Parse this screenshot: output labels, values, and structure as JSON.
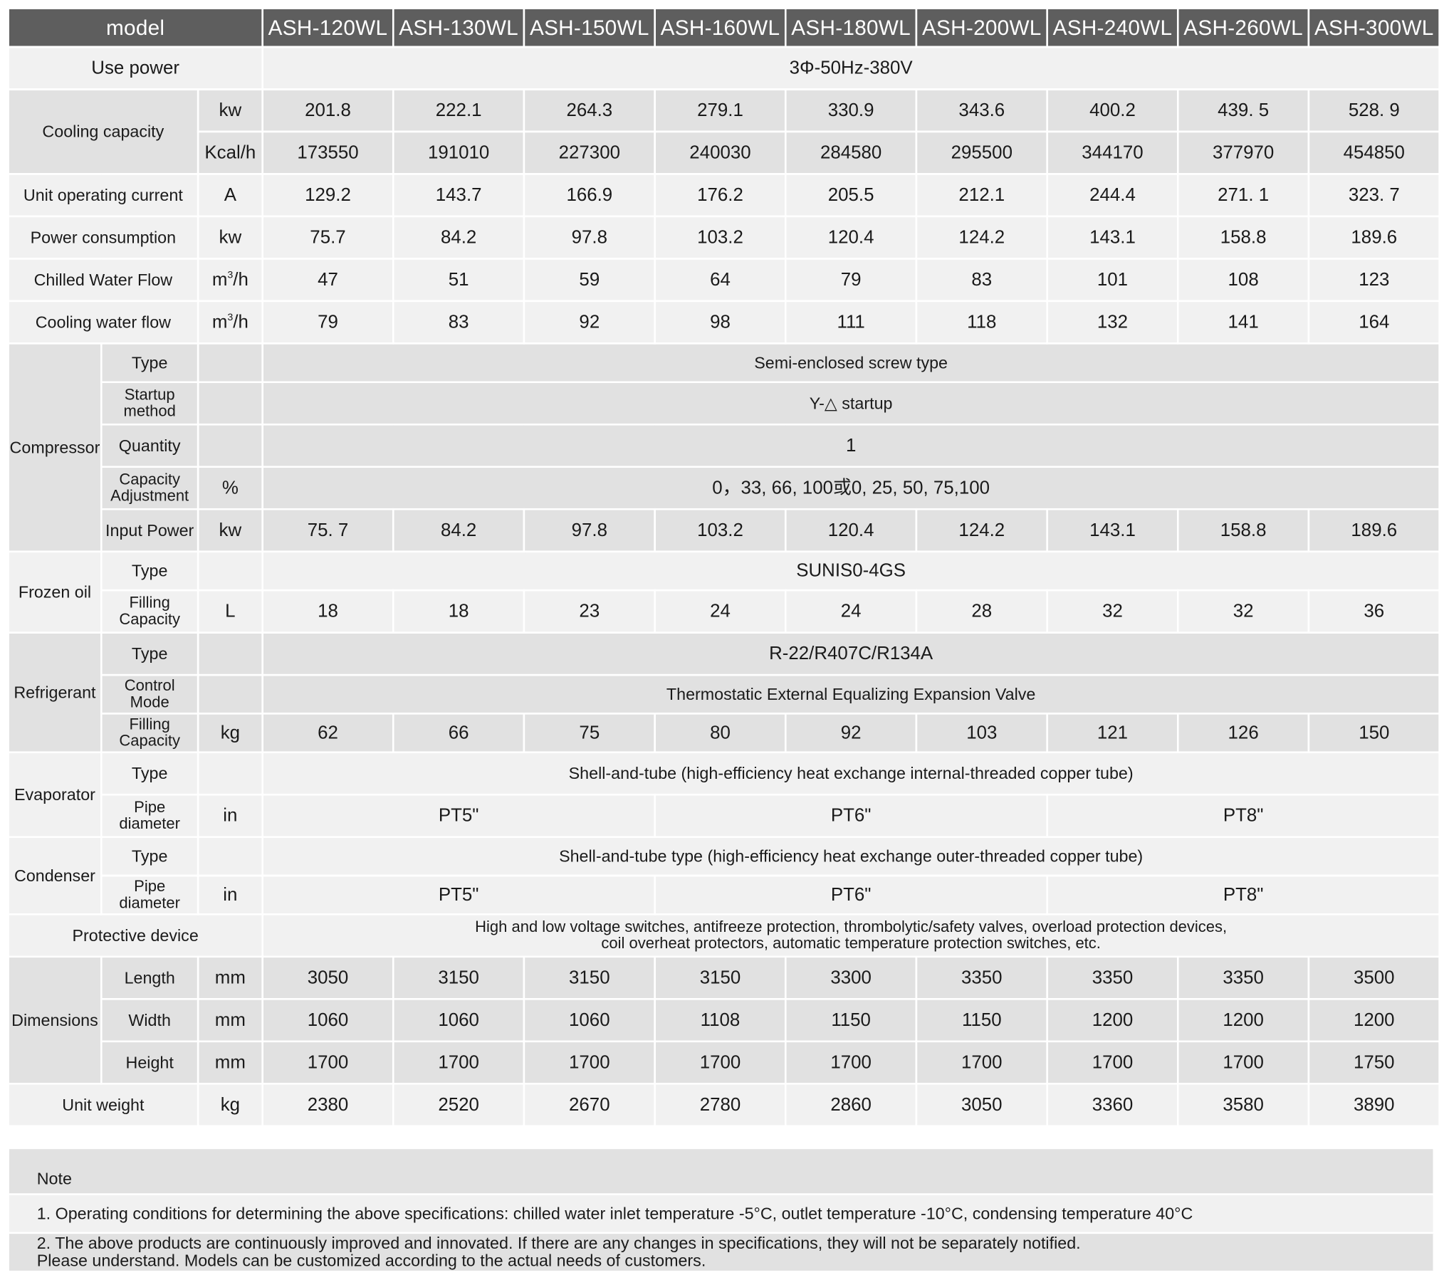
{
  "header": {
    "model_label": "model",
    "models": [
      "ASH-120WL",
      "ASH-130WL",
      "ASH-150WL",
      "ASH-160WL",
      "ASH-180WL",
      "ASH-200WL",
      "ASH-240WL",
      "ASH-260WL",
      "ASH-300WL"
    ]
  },
  "use_power": {
    "label": "Use power",
    "value": "3Φ-50Hz-380V"
  },
  "cooling_capacity": {
    "label": "Cooling capacity",
    "kw": {
      "unit": "kw",
      "values": [
        "201.8",
        "222.1",
        "264.3",
        "279.1",
        "330.9",
        "343.6",
        "400.2",
        "439. 5",
        "528. 9"
      ]
    },
    "kcal": {
      "unit": "Kcal/h",
      "values": [
        "173550",
        "191010",
        "227300",
        "240030",
        "284580",
        "295500",
        "344170",
        "377970",
        "454850"
      ]
    }
  },
  "unit_current": {
    "label": "Unit operating current",
    "unit": "A",
    "values": [
      "129.2",
      "143.7",
      "166.9",
      "176.2",
      "205.5",
      "212.1",
      "244.4",
      "271. 1",
      "323. 7"
    ]
  },
  "power_consumption": {
    "label": "Power consumption",
    "unit": "kw",
    "values": [
      "75.7",
      "84.2",
      "97.8",
      "103.2",
      "120.4",
      "124.2",
      "143.1",
      "158.8",
      "189.6"
    ]
  },
  "chilled_flow": {
    "label": "Chilled Water Flow",
    "unit_base": "m",
    "unit_sup": "3",
    "unit_tail": "/h",
    "values": [
      "47",
      "51",
      "59",
      "64",
      "79",
      "83",
      "101",
      "108",
      "123"
    ]
  },
  "cooling_flow": {
    "label": "Cooling water flow",
    "unit_base": "m",
    "unit_sup": "3",
    "unit_tail": "/h",
    "values": [
      "79",
      "83",
      "92",
      "98",
      "111",
      "118",
      "132",
      "141",
      "164"
    ]
  },
  "compressor": {
    "label": "Compressor",
    "type": {
      "label": "Type",
      "value": "Semi-enclosed screw type"
    },
    "startup": {
      "label_1": "Startup",
      "label_2": "method",
      "value": "Y-△  startup"
    },
    "quantity": {
      "label": "Quantity",
      "value": "1"
    },
    "capacity_adj": {
      "label_1": "Capacity",
      "label_2": "Adjustment",
      "unit": "%",
      "value": "0，33, 66, 100或0, 25, 50, 75,100"
    },
    "input_power": {
      "label": "Input Power",
      "unit": "kw",
      "values": [
        "75. 7",
        "84.2",
        "97.8",
        "103.2",
        "120.4",
        "124.2",
        "143.1",
        "158.8",
        "189.6"
      ]
    }
  },
  "frozen_oil": {
    "label": "Frozen oil",
    "type": {
      "label": "Type",
      "value": "SUNIS0-4GS"
    },
    "filling": {
      "label_1": "Filling",
      "label_2": "Capacity",
      "unit": "L",
      "values": [
        "18",
        "18",
        "23",
        "24",
        "24",
        "28",
        "32",
        "32",
        "36"
      ]
    }
  },
  "refrigerant": {
    "label": "Refrigerant",
    "type": {
      "label": "Type",
      "value": "R-22/R407C/R134A"
    },
    "control": {
      "label_1": "Control",
      "label_2": "Mode",
      "value": "Thermostatic External Equalizing Expansion Valve"
    },
    "filling": {
      "label_1": "Filling",
      "label_2": "Capacity",
      "unit": "kg",
      "values": [
        "62",
        "66",
        "75",
        "80",
        "92",
        "103",
        "121",
        "126",
        "150"
      ]
    }
  },
  "evaporator": {
    "label": "Evaporator",
    "type": {
      "label": "Type",
      "value": "Shell-and-tube (high-efficiency heat exchange internal-threaded copper tube)"
    },
    "pipe": {
      "label_1": "Pipe",
      "label_2": "diameter",
      "unit": "in",
      "values": [
        "PT5\"",
        "PT6\"",
        "PT8\""
      ]
    }
  },
  "condenser": {
    "label": "Condenser",
    "type": {
      "label": "Type",
      "value": "Shell-and-tube type (high-efficiency heat exchange outer-threaded copper tube)"
    },
    "pipe": {
      "label_1": "Pipe",
      "label_2": "diameter",
      "unit": "in",
      "values": [
        "PT5\"",
        "PT6\"",
        "PT8\""
      ]
    }
  },
  "protective": {
    "label": "Protective device",
    "line_1": "High and low voltage switches, antifreeze protection, thrombolytic/safety valves, overload protection devices,",
    "line_2": "coil overheat protectors, automatic temperature protection switches, etc."
  },
  "dimensions": {
    "label": "Dimensions",
    "length": {
      "label": "Length",
      "unit": "mm",
      "values": [
        "3050",
        "3150",
        "3150",
        "3150",
        "3300",
        "3350",
        "3350",
        "3350",
        "3500"
      ]
    },
    "width": {
      "label": "Width",
      "unit": "mm",
      "values": [
        "1060",
        "1060",
        "1060",
        "1108",
        "1150",
        "1150",
        "1200",
        "1200",
        "1200"
      ]
    },
    "height": {
      "label": "Height",
      "unit": "mm",
      "values": [
        "1700",
        "1700",
        "1700",
        "1700",
        "1700",
        "1700",
        "1700",
        "1700",
        "1750"
      ]
    }
  },
  "unit_weight": {
    "label": "Unit weight",
    "unit": "kg",
    "values": [
      "2380",
      "2520",
      "2670",
      "2780",
      "2860",
      "3050",
      "3360",
      "3580",
      "3890"
    ]
  },
  "notes": {
    "title": "Note",
    "note_1": "1. Operating conditions for determining the above specifications: chilled water inlet temperature -5°C, outlet temperature -10°C, condensing temperature 40°C",
    "note_2_line_1": "2. The above products are continuously improved and innovated. If there are any changes in specifications, they will not be separately notified.",
    "note_2_line_2": "Please understand. Models can be customized according to the actual needs of customers."
  }
}
